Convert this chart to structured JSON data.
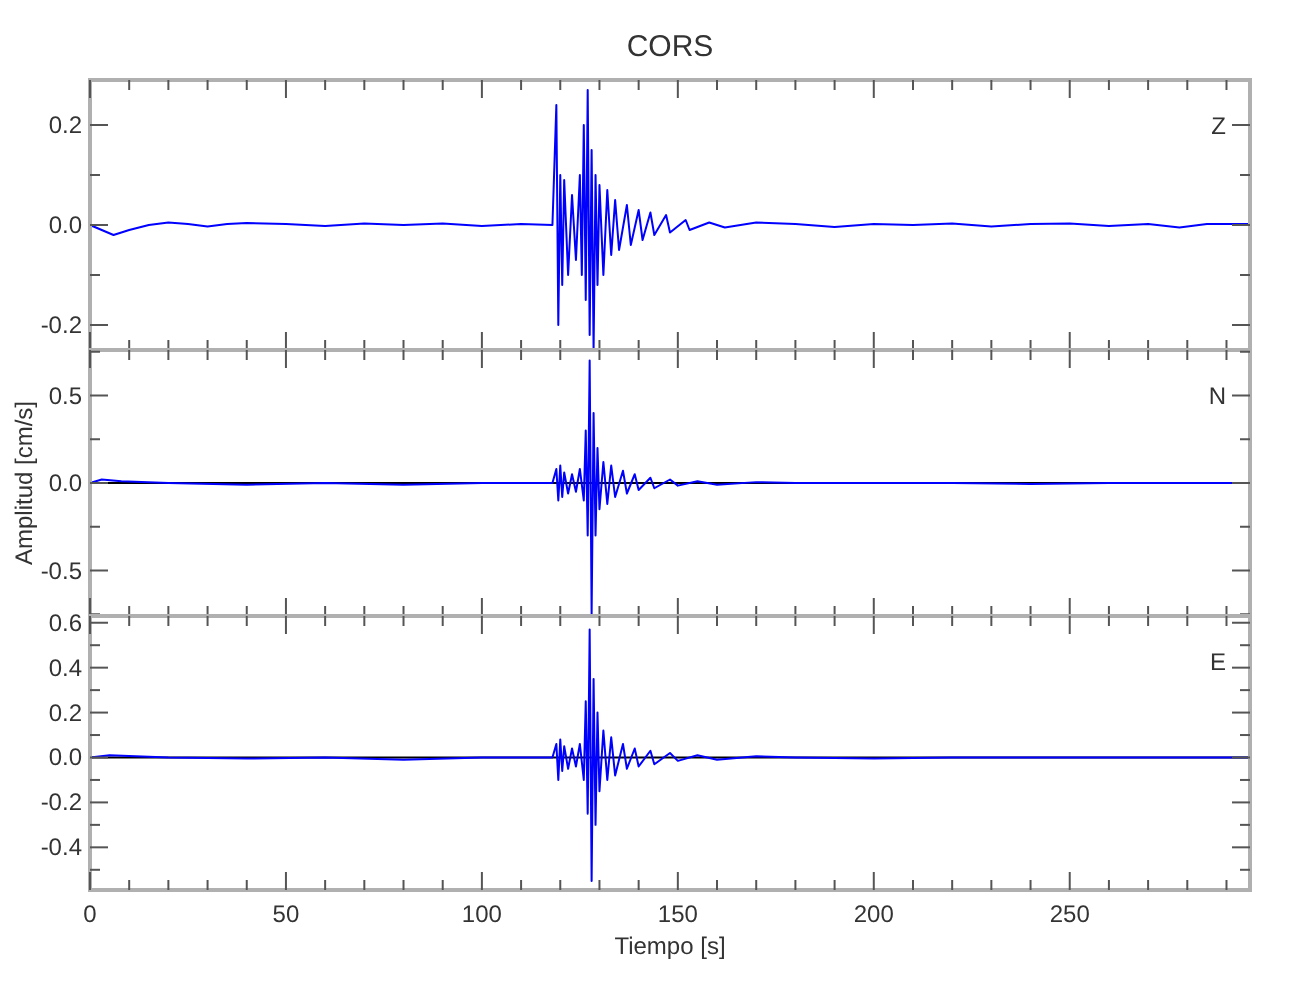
{
  "chart_data": [
    {
      "type": "line",
      "title": "CORS",
      "annotations": [
        "Z"
      ],
      "tick_labels": "y",
      "xlim": [
        0,
        296
      ],
      "ylim": [
        -0.25,
        0.29
      ],
      "xticks": [
        0,
        {
          "value": 10,
          "label": null
        },
        {
          "value": 20,
          "label": null
        },
        {
          "value": 30,
          "label": null
        },
        {
          "value": 40,
          "label": null
        },
        50,
        {
          "value": 60,
          "label": null
        },
        {
          "value": 70,
          "label": null
        },
        {
          "value": 80,
          "label": null
        },
        {
          "value": 90,
          "label": null
        },
        100,
        {
          "value": 110,
          "label": null
        },
        {
          "value": 120,
          "label": null
        },
        {
          "value": 130,
          "label": null
        },
        {
          "value": 140,
          "label": null
        },
        150,
        {
          "value": 160,
          "label": null
        },
        {
          "value": 170,
          "label": null
        },
        {
          "value": 180,
          "label": null
        },
        {
          "value": 190,
          "label": null
        },
        200,
        {
          "value": 210,
          "label": null
        },
        {
          "value": 220,
          "label": null
        },
        {
          "value": 230,
          "label": null
        },
        {
          "value": 240,
          "label": null
        },
        250,
        {
          "value": 260,
          "label": null
        },
        {
          "value": 270,
          "label": null
        },
        {
          "value": 280,
          "label": null
        },
        {
          "value": 290,
          "label": null
        }
      ],
      "yticks": [
        {
          "value": -0.2,
          "label": "-0.2"
        },
        {
          "value": -0.1,
          "label": null
        },
        {
          "value": 0,
          "label": "0.0"
        },
        {
          "value": 0.1,
          "label": null
        },
        {
          "value": 0.2,
          "label": "0.2"
        }
      ],
      "series": [
        {
          "color": "#0000ff",
          "x": [
            0,
            3,
            6,
            10,
            15,
            20,
            25,
            30,
            35,
            40,
            50,
            60,
            70,
            80,
            90,
            100,
            110,
            118,
            119,
            119.5,
            120,
            120.5,
            121,
            122,
            123,
            124,
            125,
            125.5,
            126,
            126.5,
            127,
            127.5,
            128,
            128.5,
            129,
            129.5,
            130,
            131,
            132,
            133,
            134,
            135,
            137,
            138,
            140,
            141,
            143,
            144,
            147,
            148,
            152,
            153,
            158,
            162,
            170,
            180,
            190,
            200,
            210,
            220,
            230,
            240,
            250,
            260,
            270,
            278,
            285,
            296
          ],
          "values": [
            0,
            -0.01,
            -0.02,
            -0.01,
            0,
            0.005,
            0.002,
            -0.003,
            0.002,
            0.004,
            0.002,
            -0.002,
            0.003,
            0,
            0.003,
            -0.002,
            0.002,
            0,
            0.24,
            -0.2,
            0.1,
            -0.12,
            0.09,
            -0.1,
            0.06,
            -0.07,
            0.1,
            -0.1,
            0.2,
            -0.15,
            0.27,
            -0.22,
            0.15,
            -0.25,
            0.1,
            -0.12,
            0.08,
            -0.1,
            0.07,
            -0.06,
            0.05,
            -0.05,
            0.04,
            -0.04,
            0.03,
            -0.03,
            0.025,
            -0.02,
            0.02,
            -0.015,
            0.01,
            -0.01,
            0.005,
            -0.005,
            0.005,
            0.002,
            -0.004,
            0.002,
            0,
            0.003,
            -0.003,
            0.002,
            0.003,
            -0.002,
            0.002,
            -0.005,
            0.002,
            0.002
          ]
        }
      ]
    },
    {
      "type": "line",
      "ylabel": "Amplitud [cm/s]",
      "annotations": [
        "N"
      ],
      "tick_labels": "y",
      "xlim": [
        0,
        296
      ],
      "ylim": [
        -0.76,
        0.76
      ],
      "xticks": [
        0,
        {
          "value": 10,
          "label": null
        },
        {
          "value": 20,
          "label": null
        },
        {
          "value": 30,
          "label": null
        },
        {
          "value": 40,
          "label": null
        },
        50,
        {
          "value": 60,
          "label": null
        },
        {
          "value": 70,
          "label": null
        },
        {
          "value": 80,
          "label": null
        },
        {
          "value": 90,
          "label": null
        },
        100,
        {
          "value": 110,
          "label": null
        },
        {
          "value": 120,
          "label": null
        },
        {
          "value": 130,
          "label": null
        },
        {
          "value": 140,
          "label": null
        },
        150,
        {
          "value": 160,
          "label": null
        },
        {
          "value": 170,
          "label": null
        },
        {
          "value": 180,
          "label": null
        },
        {
          "value": 190,
          "label": null
        },
        200,
        {
          "value": 210,
          "label": null
        },
        {
          "value": 220,
          "label": null
        },
        {
          "value": 230,
          "label": null
        },
        {
          "value": 240,
          "label": null
        },
        250,
        {
          "value": 260,
          "label": null
        },
        {
          "value": 270,
          "label": null
        },
        {
          "value": 280,
          "label": null
        },
        {
          "value": 290,
          "label": null
        }
      ],
      "yticks": [
        {
          "value": -0.75,
          "label": null
        },
        {
          "value": -0.5,
          "label": "-0.5"
        },
        {
          "value": -0.25,
          "label": null
        },
        {
          "value": 0,
          "label": "0.0"
        },
        {
          "value": 0.25,
          "label": null
        },
        {
          "value": 0.5,
          "label": "0.5"
        },
        {
          "value": 0.75,
          "label": null
        }
      ],
      "ref_lines": [
        {
          "axis": "y",
          "value": 0,
          "color": "#000000"
        }
      ],
      "series": [
        {
          "color": "#0000ff",
          "x": [
            0,
            3,
            8,
            20,
            40,
            60,
            80,
            100,
            118,
            119,
            119.5,
            120,
            120.5,
            121,
            122,
            123,
            124,
            125,
            126,
            126.5,
            127,
            127.5,
            128,
            128.5,
            129,
            129.5,
            130,
            131,
            132,
            133,
            134,
            136,
            137,
            139,
            140,
            143,
            144,
            148,
            150,
            155,
            160,
            170,
            180,
            200,
            220,
            240,
            260,
            280,
            296
          ],
          "values": [
            0,
            0.02,
            0.01,
            0,
            -0.01,
            0,
            -0.01,
            0,
            0,
            0.08,
            -0.1,
            0.1,
            -0.08,
            0.06,
            -0.06,
            0.05,
            -0.05,
            0.08,
            -0.1,
            0.3,
            -0.3,
            0.7,
            -0.75,
            0.4,
            -0.3,
            0.2,
            -0.15,
            0.12,
            -0.12,
            0.1,
            -0.08,
            0.07,
            -0.06,
            0.05,
            -0.04,
            0.03,
            -0.03,
            0.02,
            -0.015,
            0.01,
            -0.01,
            0.005,
            0,
            0,
            0,
            -0.005,
            0,
            0,
            0
          ]
        }
      ]
    },
    {
      "type": "line",
      "xlabel": "Tiempo [s]",
      "annotations": [
        "E"
      ],
      "xlim": [
        0,
        296
      ],
      "ylim": [
        -0.59,
        0.63
      ],
      "xticks": [
        0,
        {
          "value": 10,
          "label": null
        },
        {
          "value": 20,
          "label": null
        },
        {
          "value": 30,
          "label": null
        },
        {
          "value": 40,
          "label": null
        },
        50,
        {
          "value": 60,
          "label": null
        },
        {
          "value": 70,
          "label": null
        },
        {
          "value": 80,
          "label": null
        },
        {
          "value": 90,
          "label": null
        },
        100,
        {
          "value": 110,
          "label": null
        },
        {
          "value": 120,
          "label": null
        },
        {
          "value": 130,
          "label": null
        },
        {
          "value": 140,
          "label": null
        },
        150,
        {
          "value": 160,
          "label": null
        },
        {
          "value": 170,
          "label": null
        },
        {
          "value": 180,
          "label": null
        },
        {
          "value": 190,
          "label": null
        },
        200,
        {
          "value": 210,
          "label": null
        },
        {
          "value": 220,
          "label": null
        },
        {
          "value": 230,
          "label": null
        },
        {
          "value": 240,
          "label": null
        },
        250,
        {
          "value": 260,
          "label": null
        },
        {
          "value": 270,
          "label": null
        },
        {
          "value": 280,
          "label": null
        },
        {
          "value": 290,
          "label": null
        }
      ],
      "yticks": [
        {
          "value": -0.5,
          "label": null
        },
        {
          "value": -0.4,
          "label": "-0.4"
        },
        {
          "value": -0.3,
          "label": null
        },
        {
          "value": -0.2,
          "label": "-0.2"
        },
        {
          "value": -0.1,
          "label": null
        },
        {
          "value": 0,
          "label": "0.0"
        },
        {
          "value": 0.1,
          "label": null
        },
        {
          "value": 0.2,
          "label": "0.2"
        },
        {
          "value": 0.3,
          "label": null
        },
        {
          "value": 0.4,
          "label": "0.4"
        },
        {
          "value": 0.5,
          "label": null
        },
        {
          "value": 0.6,
          "label": "0.6"
        }
      ],
      "ref_lines": [
        {
          "axis": "y",
          "value": 0,
          "color": "#000000"
        }
      ],
      "series": [
        {
          "color": "#0000ff",
          "x": [
            0,
            5,
            20,
            40,
            60,
            80,
            100,
            118,
            119,
            119.5,
            120,
            120.5,
            121,
            122,
            123,
            124,
            125,
            126,
            126.5,
            127,
            127.5,
            128,
            128.5,
            129,
            129.5,
            130,
            131,
            132,
            133,
            134,
            136,
            137,
            139,
            140,
            143,
            144,
            148,
            150,
            155,
            160,
            170,
            180,
            200,
            220,
            240,
            260,
            280,
            296
          ],
          "values": [
            0,
            0.01,
            0,
            -0.005,
            0,
            -0.01,
            0,
            0,
            0.06,
            -0.1,
            0.08,
            -0.06,
            0.05,
            -0.05,
            0.04,
            -0.04,
            0.06,
            -0.1,
            0.25,
            -0.25,
            0.57,
            -0.55,
            0.35,
            -0.3,
            0.2,
            -0.15,
            0.12,
            -0.1,
            0.09,
            -0.08,
            0.06,
            -0.05,
            0.04,
            -0.04,
            0.03,
            -0.03,
            0.02,
            -0.015,
            0.01,
            -0.01,
            0.005,
            0,
            -0.005,
            0,
            0,
            0,
            0,
            0
          ]
        }
      ]
    }
  ]
}
